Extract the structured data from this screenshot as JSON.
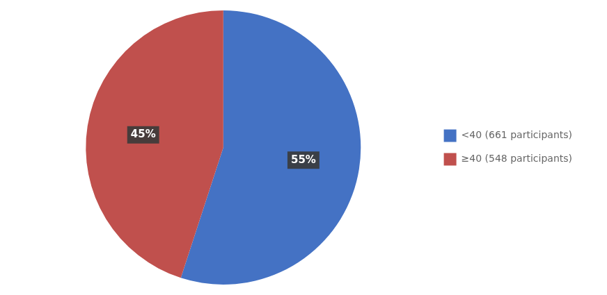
{
  "chart_data": {
    "type": "pie",
    "categories": [
      "<40 (661 participants)",
      "≥40 (548 participants)"
    ],
    "values": [
      55,
      45
    ],
    "value_labels": [
      "55%",
      "45%"
    ],
    "colors": [
      "#4472C4",
      "#C0504D"
    ],
    "data_labels": true,
    "legend": "right"
  }
}
